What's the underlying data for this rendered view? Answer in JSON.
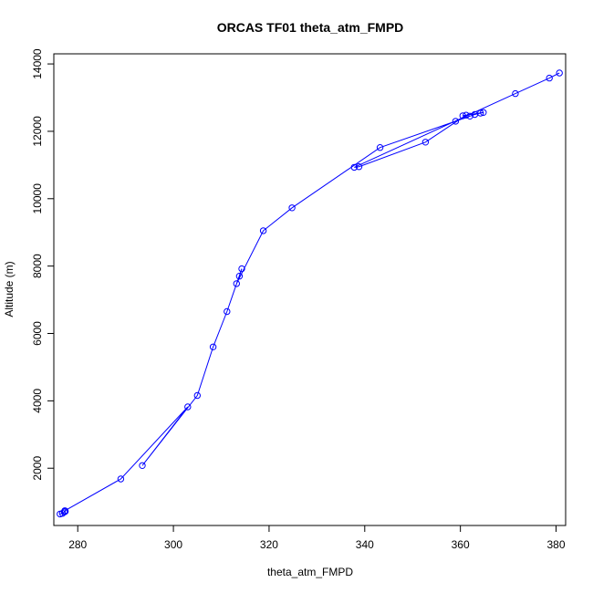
{
  "chart_data": {
    "type": "scatter",
    "title": "ORCAS TF01 theta_atm_FMPD",
    "xlabel": "theta_atm_FMPD",
    "ylabel": "Altitude (m)",
    "xlim": [
      275,
      382
    ],
    "ylim": [
      300,
      14300
    ],
    "xticks": [
      280,
      300,
      320,
      340,
      360,
      380
    ],
    "yticks": [
      2000,
      4000,
      6000,
      8000,
      10000,
      12000,
      14000
    ],
    "grid": false,
    "color": "#0000ff",
    "markers": "open-circle",
    "connected": true,
    "series": [
      {
        "x": [
          276.3,
          276.8,
          277.2,
          277.4,
          277.3,
          289.0,
          303.0,
          293.5,
          305.0,
          308.3,
          311.2,
          314.3,
          313.8,
          313.2,
          318.8,
          324.8,
          343.2,
          359.0,
          362.0,
          363.0,
          364.2,
          364.8,
          360.5,
          361.2,
          352.7,
          338.8,
          337.8,
          371.5,
          378.6,
          380.7
        ],
        "y": [
          640,
          660,
          700,
          720,
          740,
          1680,
          3820,
          2080,
          4160,
          5600,
          6650,
          7920,
          7700,
          7480,
          9050,
          9730,
          11520,
          12300,
          12450,
          12500,
          12540,
          12560,
          12460,
          12480,
          11680,
          10950,
          10930,
          13120,
          13580,
          13730
        ]
      }
    ]
  }
}
